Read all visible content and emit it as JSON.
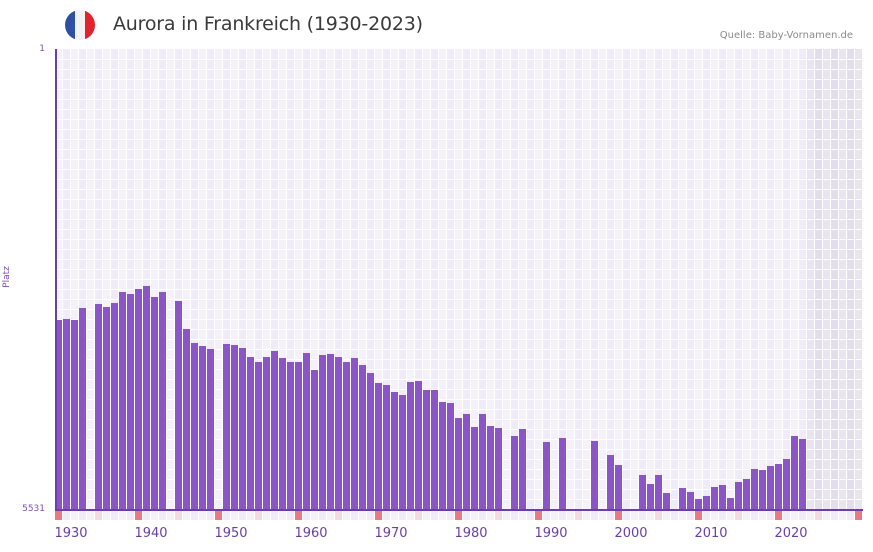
{
  "header": {
    "title": "Aurora in Frankreich (1930-2023)",
    "source": "Quelle: Baby-Vornamen.de",
    "flag": {
      "country": "France",
      "colors": [
        "#2f4fa3",
        "#f2f2f2",
        "#e2222c"
      ]
    }
  },
  "axis": {
    "y_label": "Platz",
    "y_top_label": "1",
    "y_bottom_label": "5531",
    "x_labels": [
      "1930",
      "1940",
      "1950",
      "1960",
      "1970",
      "1980",
      "1990",
      "2000",
      "2010",
      "2020"
    ]
  },
  "colors": {
    "bar": "#8b55c7",
    "axis": "#6a3fa8",
    "col_a": "#efebf9",
    "col_b": "#f4f1fb",
    "future_a": "#e3deed",
    "future_b": "#e8e4f0",
    "decade_marker": "#e77a80",
    "half_decade_marker": "#f6d9e2",
    "minor_marker_a": "#efebf9",
    "minor_marker_b": "#f4f1fb"
  },
  "chart_data": {
    "type": "bar",
    "title": "Aurora in Frankreich (1930-2023)",
    "xlabel": "",
    "ylabel": "Platz",
    "y_inverted": true,
    "ylim": [
      1,
      5531
    ],
    "xlim": [
      1930,
      2030
    ],
    "grid": true,
    "legend": null,
    "annotations": [
      "Quelle: Baby-Vornamen.de"
    ],
    "x_tick_labels": [
      "1930",
      "1940",
      "1950",
      "1960",
      "1970",
      "1980",
      "1990",
      "2000",
      "2010",
      "2020"
    ],
    "y_tick_labels": [
      "1",
      "5531"
    ],
    "points": [
      {
        "year": 1930,
        "rank": 3252
      },
      {
        "year": 1931,
        "rank": 3240
      },
      {
        "year": 1932,
        "rank": 3252
      },
      {
        "year": 1933,
        "rank": 3108
      },
      {
        "year": 1935,
        "rank": 3060
      },
      {
        "year": 1936,
        "rank": 3096
      },
      {
        "year": 1937,
        "rank": 3048
      },
      {
        "year": 1938,
        "rank": 2916
      },
      {
        "year": 1939,
        "rank": 2940
      },
      {
        "year": 1940,
        "rank": 2880
      },
      {
        "year": 1941,
        "rank": 2844
      },
      {
        "year": 1942,
        "rank": 2976
      },
      {
        "year": 1943,
        "rank": 2916
      },
      {
        "year": 1945,
        "rank": 3024
      },
      {
        "year": 1946,
        "rank": 3360
      },
      {
        "year": 1947,
        "rank": 3528
      },
      {
        "year": 1948,
        "rank": 3564
      },
      {
        "year": 1949,
        "rank": 3600
      },
      {
        "year": 1951,
        "rank": 3540
      },
      {
        "year": 1952,
        "rank": 3552
      },
      {
        "year": 1953,
        "rank": 3588
      },
      {
        "year": 1954,
        "rank": 3696
      },
      {
        "year": 1955,
        "rank": 3756
      },
      {
        "year": 1956,
        "rank": 3696
      },
      {
        "year": 1957,
        "rank": 3624
      },
      {
        "year": 1958,
        "rank": 3708
      },
      {
        "year": 1959,
        "rank": 3756
      },
      {
        "year": 1960,
        "rank": 3756
      },
      {
        "year": 1961,
        "rank": 3648
      },
      {
        "year": 1962,
        "rank": 3852
      },
      {
        "year": 1963,
        "rank": 3672
      },
      {
        "year": 1964,
        "rank": 3660
      },
      {
        "year": 1965,
        "rank": 3696
      },
      {
        "year": 1966,
        "rank": 3756
      },
      {
        "year": 1967,
        "rank": 3708
      },
      {
        "year": 1968,
        "rank": 3792
      },
      {
        "year": 1969,
        "rank": 3888
      },
      {
        "year": 1970,
        "rank": 4008
      },
      {
        "year": 1971,
        "rank": 4032
      },
      {
        "year": 1972,
        "rank": 4116
      },
      {
        "year": 1973,
        "rank": 4152
      },
      {
        "year": 1974,
        "rank": 3996
      },
      {
        "year": 1975,
        "rank": 3984
      },
      {
        "year": 1976,
        "rank": 4092
      },
      {
        "year": 1977,
        "rank": 4092
      },
      {
        "year": 1978,
        "rank": 4236
      },
      {
        "year": 1979,
        "rank": 4248
      },
      {
        "year": 1980,
        "rank": 4428
      },
      {
        "year": 1981,
        "rank": 4380
      },
      {
        "year": 1982,
        "rank": 4536
      },
      {
        "year": 1983,
        "rank": 4380
      },
      {
        "year": 1984,
        "rank": 4524
      },
      {
        "year": 1985,
        "rank": 4548
      },
      {
        "year": 1987,
        "rank": 4644
      },
      {
        "year": 1988,
        "rank": 4560
      },
      {
        "year": 1991,
        "rank": 4716
      },
      {
        "year": 1993,
        "rank": 4668
      },
      {
        "year": 1997,
        "rank": 4704
      },
      {
        "year": 1999,
        "rank": 4872
      },
      {
        "year": 2000,
        "rank": 4992
      },
      {
        "year": 2003,
        "rank": 5112
      },
      {
        "year": 2004,
        "rank": 5220
      },
      {
        "year": 2005,
        "rank": 5112
      },
      {
        "year": 2006,
        "rank": 5328
      },
      {
        "year": 2008,
        "rank": 5268
      },
      {
        "year": 2009,
        "rank": 5316
      },
      {
        "year": 2010,
        "rank": 5400
      },
      {
        "year": 2011,
        "rank": 5364
      },
      {
        "year": 2012,
        "rank": 5256
      },
      {
        "year": 2013,
        "rank": 5232
      },
      {
        "year": 2014,
        "rank": 5388
      },
      {
        "year": 2015,
        "rank": 5196
      },
      {
        "year": 2016,
        "rank": 5160
      },
      {
        "year": 2017,
        "rank": 5040
      },
      {
        "year": 2018,
        "rank": 5052
      },
      {
        "year": 2019,
        "rank": 5004
      },
      {
        "year": 2020,
        "rank": 4980
      },
      {
        "year": 2021,
        "rank": 4920
      },
      {
        "year": 2022,
        "rank": 4644
      },
      {
        "year": 2023,
        "rank": 4680
      }
    ],
    "future_shaded_from": 2024
  }
}
